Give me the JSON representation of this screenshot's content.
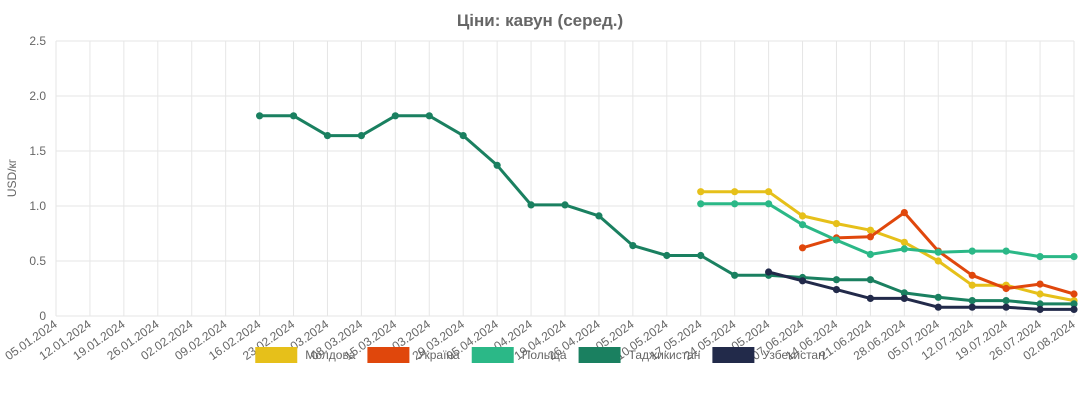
{
  "chart_data": {
    "type": "line",
    "title": "Ціни: кавун (серед.)",
    "xlabel": "",
    "ylabel": "USD/кг",
    "ylim": [
      0,
      2.5
    ],
    "yticks": [
      "0",
      "0.5",
      "1.0",
      "1.5",
      "2.0",
      "2.5"
    ],
    "grid": true,
    "legend": "bottom",
    "categories": [
      "05.01.2024",
      "12.01.2024",
      "19.01.2024",
      "26.01.2024",
      "02.02.2024",
      "09.02.2024",
      "16.02.2024",
      "23.02.2024",
      "01.03.2024",
      "08.03.2024",
      "15.03.2024",
      "22.03.2024",
      "29.03.2024",
      "05.04.2024",
      "12.04.2024",
      "19.04.2024",
      "26.04.2024",
      "03.05.2024",
      "10.05.2024",
      "17.05.2024",
      "24.05.2024",
      "31.05.2024",
      "07.06.2024",
      "14.06.2024",
      "21.06.2024",
      "28.06.2024",
      "05.07.2024",
      "12.07.2024",
      "19.07.2024",
      "26.07.2024",
      "02.08.2024"
    ],
    "series": [
      {
        "name": "Молдова",
        "color": "#e6c01a",
        "values": [
          null,
          null,
          null,
          null,
          null,
          null,
          null,
          null,
          null,
          null,
          null,
          null,
          null,
          null,
          null,
          null,
          null,
          null,
          null,
          1.13,
          1.13,
          1.13,
          0.91,
          0.84,
          0.78,
          0.67,
          0.5,
          0.28,
          0.28,
          0.2,
          0.14
        ]
      },
      {
        "name": "Україна",
        "color": "#e0470c",
        "values": [
          null,
          null,
          null,
          null,
          null,
          null,
          null,
          null,
          null,
          null,
          null,
          null,
          null,
          null,
          null,
          null,
          null,
          null,
          null,
          null,
          null,
          null,
          0.62,
          0.71,
          0.72,
          0.94,
          0.59,
          0.37,
          0.25,
          0.29,
          0.2
        ]
      },
      {
        "name": "Польща",
        "color": "#2bb887",
        "values": [
          null,
          null,
          null,
          null,
          null,
          null,
          null,
          null,
          null,
          null,
          null,
          null,
          null,
          null,
          null,
          null,
          null,
          null,
          null,
          1.02,
          1.02,
          1.02,
          0.83,
          0.69,
          0.56,
          0.61,
          0.58,
          0.59,
          0.59,
          0.54,
          0.54
        ]
      },
      {
        "name": "Таджикистан",
        "color": "#1a8060",
        "values": [
          null,
          null,
          null,
          null,
          null,
          null,
          1.82,
          1.82,
          1.64,
          1.64,
          1.82,
          1.82,
          1.64,
          1.37,
          1.01,
          1.01,
          0.91,
          0.64,
          0.55,
          0.55,
          0.37,
          0.37,
          0.35,
          0.33,
          0.33,
          0.21,
          0.17,
          0.14,
          0.14,
          0.11,
          0.11
        ]
      },
      {
        "name": "Узбекистан",
        "color": "#222a4a",
        "values": [
          null,
          null,
          null,
          null,
          null,
          null,
          null,
          null,
          null,
          null,
          null,
          null,
          null,
          null,
          null,
          null,
          null,
          null,
          null,
          null,
          null,
          0.4,
          0.32,
          0.24,
          0.16,
          0.16,
          0.08,
          0.08,
          0.08,
          0.06,
          0.06
        ]
      }
    ]
  }
}
